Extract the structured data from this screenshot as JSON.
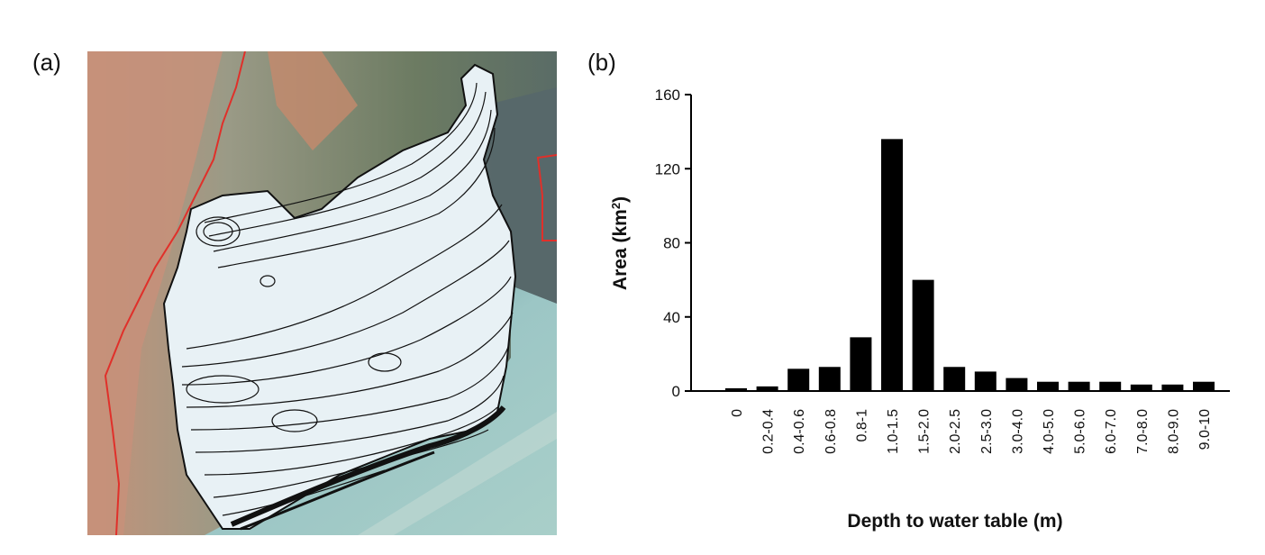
{
  "figure": {
    "panel_a_label": "(a)",
    "panel_b_label": "(b)"
  },
  "map": {
    "description_icon": "satellite-contour-map",
    "colors": {
      "terrain_red": "#b9775f",
      "terrain_green": "#6f7d5f",
      "sea": "#9fc6c6",
      "sea_deep": "#6f9e9e",
      "boundary": "#e0302a",
      "area_fill": "#e9f1f5",
      "contour": "#111111"
    }
  },
  "chart_data": {
    "type": "bar",
    "categories": [
      "0",
      "0.2-0.4",
      "0.4-0.6",
      "0.6-0.8",
      "0.8-1",
      "1.0-1.5",
      "1.5-2.0",
      "2.0-2.5",
      "2.5-3.0",
      "3.0-4.0",
      "4.0-5.0",
      "5.0-6.0",
      "6.0-7.0",
      "7.0-8.0",
      "8.0-9.0",
      "9.0-10"
    ],
    "values": [
      1.5,
      2.5,
      12,
      13,
      29,
      136,
      60,
      13,
      10.5,
      7,
      5,
      5,
      5,
      3.5,
      3.5,
      5
    ],
    "xlabel": "Depth to water table (m)",
    "ylabel_main": "Area (km",
    "ylabel_sup": "2",
    "ylabel_close": ")",
    "ylim": [
      0,
      160
    ],
    "yticks": [
      0,
      40,
      80,
      120,
      160
    ],
    "grid": false,
    "bar_color": "#000000"
  }
}
